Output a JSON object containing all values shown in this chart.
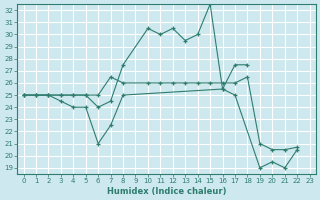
{
  "xlabel": "Humidex (Indice chaleur)",
  "background_color": "#cde8ef",
  "line_color": "#2e7d6e",
  "grid_color": "#ffffff",
  "xlim": [
    -0.5,
    23.5
  ],
  "ylim": [
    18.5,
    32.5
  ],
  "yticks": [
    19,
    20,
    21,
    22,
    23,
    24,
    25,
    26,
    27,
    28,
    29,
    30,
    31,
    32
  ],
  "xticks": [
    0,
    1,
    2,
    3,
    4,
    5,
    6,
    7,
    8,
    9,
    10,
    11,
    12,
    13,
    14,
    15,
    16,
    17,
    18,
    19,
    20,
    21,
    22,
    23
  ],
  "series": [
    {
      "x": [
        0,
        1,
        2,
        3,
        4,
        5,
        6,
        7,
        8,
        10,
        11,
        12,
        13,
        14,
        15,
        16,
        17,
        18
      ],
      "y": [
        25,
        25,
        25,
        25,
        25,
        25,
        24,
        24.5,
        27.5,
        30.5,
        30,
        30.5,
        29.5,
        30,
        32.5,
        25.5,
        27.5,
        27.5
      ]
    },
    {
      "x": [
        0,
        1,
        2,
        3,
        4,
        5,
        6,
        7,
        8,
        10,
        11,
        12,
        13,
        14,
        15,
        16,
        17,
        18,
        19,
        20,
        21,
        22
      ],
      "y": [
        25,
        25,
        25,
        25,
        25,
        25,
        25,
        26.5,
        26,
        26,
        26,
        26,
        26,
        26,
        26,
        26,
        26,
        26.5,
        21,
        20.5,
        20.5,
        20.7
      ]
    },
    {
      "x": [
        0,
        1,
        2,
        3,
        4,
        5,
        6,
        7,
        8,
        16,
        17,
        19,
        20,
        21,
        22
      ],
      "y": [
        25,
        25,
        25,
        24.5,
        24,
        24,
        21,
        22.5,
        25,
        25.5,
        25,
        19,
        19.5,
        19,
        20.5
      ]
    }
  ]
}
